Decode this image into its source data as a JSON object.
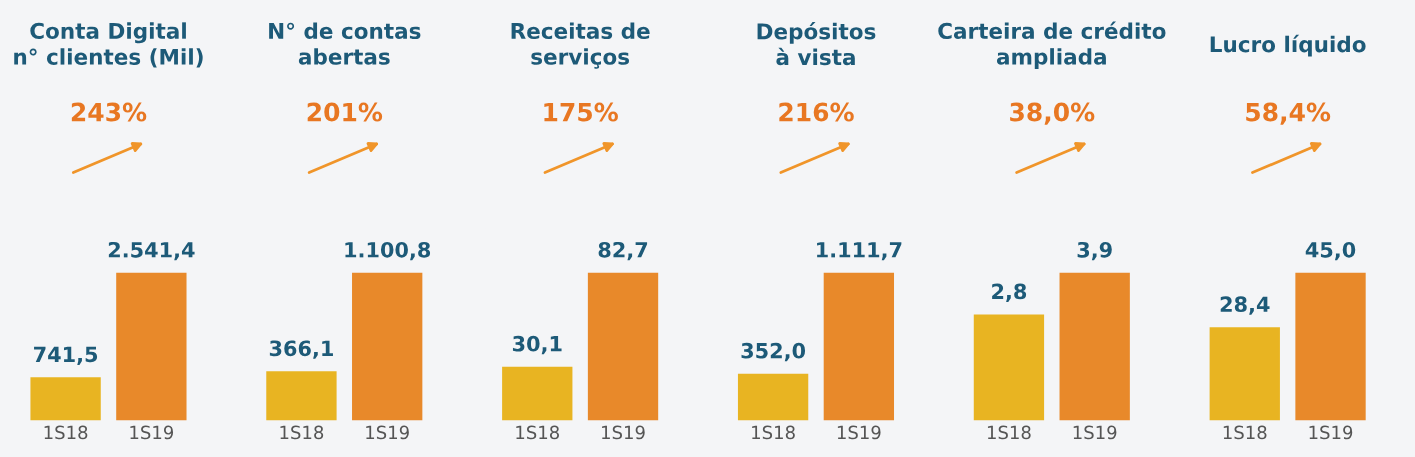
{
  "chart_data": [
    {
      "type": "bar",
      "title": "Conta Digital\nn° clientes (Mil)",
      "annotations": [
        "243%"
      ],
      "categories": [
        "1S18",
        "1S19"
      ],
      "values": [
        741.5,
        2541.4
      ],
      "value_labels": [
        "741,5",
        "2.541,4"
      ],
      "colors": [
        "#e8b422",
        "#e8892a"
      ]
    },
    {
      "type": "bar",
      "title": "N° de contas\nabertas",
      "annotations": [
        "201%"
      ],
      "categories": [
        "1S18",
        "1S19"
      ],
      "values": [
        366.1,
        1100.8
      ],
      "value_labels": [
        "366,1",
        "1.100,8"
      ],
      "colors": [
        "#e8b422",
        "#e8892a"
      ]
    },
    {
      "type": "bar",
      "title": "Receitas de\nserviços",
      "annotations": [
        "175%"
      ],
      "categories": [
        "1S18",
        "1S19"
      ],
      "values": [
        30.1,
        82.7
      ],
      "value_labels": [
        "30,1",
        "82,7"
      ],
      "colors": [
        "#e8b422",
        "#e8892a"
      ]
    },
    {
      "type": "bar",
      "title": "Depósitos\nà vista",
      "annotations": [
        "216%"
      ],
      "categories": [
        "1S18",
        "1S19"
      ],
      "values": [
        352.0,
        1111.7
      ],
      "value_labels": [
        "352,0",
        "1.111,7"
      ],
      "colors": [
        "#e8b422",
        "#e8892a"
      ]
    },
    {
      "type": "bar",
      "title": "Carteira de crédito\nampliada",
      "annotations": [
        "38,0%"
      ],
      "categories": [
        "1S18",
        "1S19"
      ],
      "values": [
        2.8,
        3.9
      ],
      "value_labels": [
        "2,8",
        "3,9"
      ],
      "colors": [
        "#e8b422",
        "#e8892a"
      ]
    },
    {
      "type": "bar",
      "title": "Lucro líquido",
      "annotations": [
        "58,4%"
      ],
      "categories": [
        "1S18",
        "1S19"
      ],
      "values": [
        28.4,
        45.0
      ],
      "value_labels": [
        "28,4",
        "45,0"
      ],
      "colors": [
        "#e8b422",
        "#e8892a"
      ]
    }
  ]
}
